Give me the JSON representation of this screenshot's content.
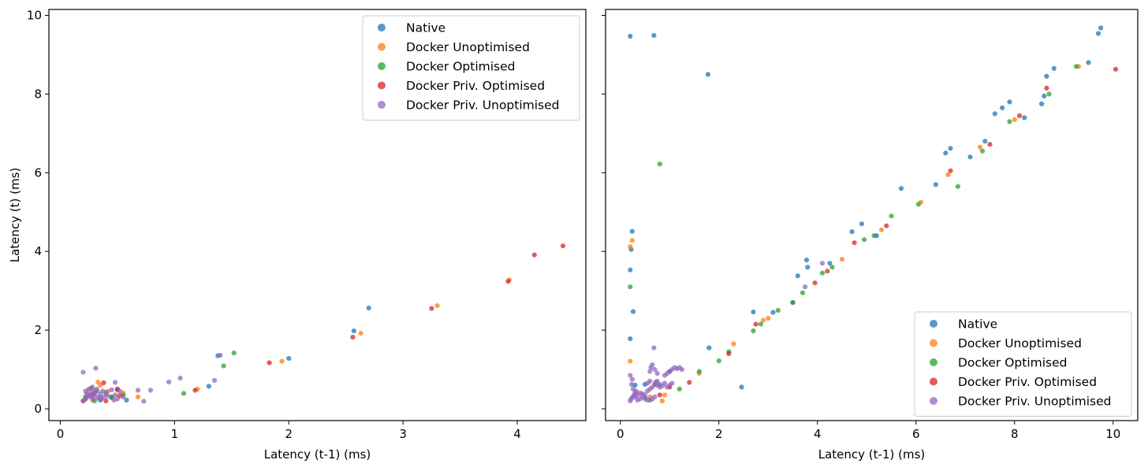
{
  "chart_data": [
    {
      "type": "scatter",
      "xlabel": "Latency (t-1) (ms)",
      "ylabel": "Latency (t) (ms)",
      "xlim": [
        -0.1,
        4.6
      ],
      "ylim": [
        -0.3,
        10.15
      ],
      "xticks": [
        0,
        1,
        2,
        3,
        4
      ],
      "yticks": [
        0,
        2,
        4,
        6,
        8,
        10
      ],
      "legend_position": "upper right",
      "series": [
        {
          "name": "Native",
          "color": "#1f77b4",
          "points": [
            [
              0.22,
              0.25
            ],
            [
              0.3,
              0.4
            ],
            [
              0.45,
              0.3
            ],
            [
              0.58,
              0.22
            ],
            [
              1.3,
              0.57
            ],
            [
              1.38,
              1.35
            ],
            [
              2.0,
              1.28
            ],
            [
              2.57,
              1.98
            ],
            [
              2.7,
              2.56
            ],
            [
              0.25,
              0.35
            ],
            [
              0.35,
              0.22
            ],
            [
              0.5,
              0.48
            ]
          ]
        },
        {
          "name": "Docker Unoptimised",
          "color": "#ff7f0e",
          "points": [
            [
              0.25,
              0.45
            ],
            [
              0.35,
              0.6
            ],
            [
              0.33,
              0.68
            ],
            [
              0.42,
              0.45
            ],
            [
              0.55,
              0.4
            ],
            [
              0.68,
              0.3
            ],
            [
              1.2,
              0.5
            ],
            [
              1.94,
              1.21
            ],
            [
              2.63,
              1.92
            ],
            [
              3.3,
              2.62
            ],
            [
              3.93,
              3.28
            ],
            [
              0.28,
              0.22
            ]
          ]
        },
        {
          "name": "Docker Optimised",
          "color": "#2ca02c",
          "points": [
            [
              0.22,
              0.3
            ],
            [
              0.27,
              0.52
            ],
            [
              0.32,
              0.45
            ],
            [
              0.45,
              0.28
            ],
            [
              0.55,
              0.35
            ],
            [
              1.08,
              0.39
            ],
            [
              1.43,
              1.09
            ],
            [
              1.52,
              1.42
            ],
            [
              0.3,
              0.2
            ],
            [
              0.4,
              0.38
            ]
          ]
        },
        {
          "name": "Docker Priv. Optimised",
          "color": "#d62728",
          "points": [
            [
              0.2,
              0.2
            ],
            [
              0.28,
              0.35
            ],
            [
              0.38,
              0.66
            ],
            [
              0.4,
              0.2
            ],
            [
              0.5,
              0.5
            ],
            [
              0.52,
              0.33
            ],
            [
              1.18,
              0.47
            ],
            [
              1.83,
              1.17
            ],
            [
              2.56,
              1.82
            ],
            [
              3.25,
              2.55
            ],
            [
              3.92,
              3.24
            ],
            [
              4.15,
              3.91
            ],
            [
              4.4,
              4.14
            ]
          ]
        },
        {
          "name": "Docker Priv. Unoptimised",
          "color": "#9467bd",
          "points": [
            [
              0.2,
              0.93
            ],
            [
              0.31,
              1.03
            ],
            [
              0.2,
              0.2
            ],
            [
              0.22,
              0.25
            ],
            [
              0.24,
              0.3
            ],
            [
              0.26,
              0.35
            ],
            [
              0.28,
              0.4
            ],
            [
              0.3,
              0.45
            ],
            [
              0.32,
              0.5
            ],
            [
              0.34,
              0.3
            ],
            [
              0.36,
              0.25
            ],
            [
              0.25,
              0.5
            ],
            [
              0.28,
              0.55
            ],
            [
              0.3,
              0.35
            ],
            [
              0.33,
              0.28
            ],
            [
              0.38,
              0.3
            ],
            [
              0.4,
              0.42
            ],
            [
              0.45,
              0.48
            ],
            [
              0.48,
              0.35
            ],
            [
              0.5,
              0.25
            ],
            [
              0.52,
              0.45
            ],
            [
              0.55,
              0.3
            ],
            [
              0.22,
              0.45
            ],
            [
              0.27,
              0.3
            ],
            [
              0.35,
              0.38
            ],
            [
              0.42,
              0.32
            ],
            [
              0.47,
              0.22
            ],
            [
              0.23,
              0.38
            ],
            [
              0.29,
              0.25
            ],
            [
              0.37,
              0.45
            ],
            [
              0.48,
              0.67
            ],
            [
              0.68,
              0.47
            ],
            [
              0.73,
              0.19
            ],
            [
              0.79,
              0.47
            ],
            [
              0.95,
              0.68
            ],
            [
              1.05,
              0.78
            ],
            [
              1.35,
              0.72
            ],
            [
              1.4,
              1.36
            ]
          ]
        }
      ]
    },
    {
      "type": "scatter",
      "xlabel": "Latency (t-1) (ms)",
      "ylabel": "",
      "xlim": [
        -0.3,
        10.5
      ],
      "ylim": [
        -0.3,
        10.15
      ],
      "xticks": [
        0,
        2,
        4,
        6,
        8,
        10
      ],
      "yticks": [
        0,
        2,
        4,
        6,
        8,
        10
      ],
      "legend_position": "lower right",
      "series": [
        {
          "name": "Native",
          "color": "#1f77b4",
          "points": [
            [
              0.2,
              9.47
            ],
            [
              0.68,
              9.49
            ],
            [
              1.78,
              8.5
            ],
            [
              0.24,
              4.51
            ],
            [
              0.22,
              4.05
            ],
            [
              0.2,
              3.53
            ],
            [
              0.26,
              2.47
            ],
            [
              0.2,
              1.78
            ],
            [
              2.46,
              0.55
            ],
            [
              0.7,
              0.62
            ],
            [
              1.8,
              1.55
            ],
            [
              3.78,
              3.78
            ],
            [
              3.8,
              3.6
            ],
            [
              3.6,
              3.38
            ],
            [
              4.25,
              3.7
            ],
            [
              4.7,
              4.5
            ],
            [
              4.9,
              4.7
            ],
            [
              5.2,
              4.4
            ],
            [
              5.7,
              5.6
            ],
            [
              6.4,
              5.7
            ],
            [
              6.6,
              6.5
            ],
            [
              6.7,
              6.62
            ],
            [
              7.1,
              6.4
            ],
            [
              7.4,
              6.8
            ],
            [
              7.6,
              7.5
            ],
            [
              7.75,
              7.65
            ],
            [
              7.9,
              7.8
            ],
            [
              8.2,
              7.4
            ],
            [
              8.55,
              7.75
            ],
            [
              8.6,
              7.95
            ],
            [
              8.65,
              8.45
            ],
            [
              8.8,
              8.65
            ],
            [
              9.5,
              8.8
            ],
            [
              9.7,
              9.54
            ],
            [
              9.75,
              9.68
            ],
            [
              2.7,
              2.46
            ],
            [
              3.1,
              2.45
            ],
            [
              3.5,
              2.7
            ],
            [
              0.5,
              0.62
            ],
            [
              1.0,
              0.95
            ],
            [
              0.3,
              0.6
            ]
          ]
        },
        {
          "name": "Docker Unoptimised",
          "color": "#ff7f0e",
          "points": [
            [
              0.24,
              4.28
            ],
            [
              0.2,
              4.12
            ],
            [
              0.2,
              1.21
            ],
            [
              0.85,
              0.2
            ],
            [
              2.3,
              1.65
            ],
            [
              2.9,
              2.25
            ],
            [
              3.0,
              2.3
            ],
            [
              4.5,
              3.8
            ],
            [
              5.3,
              4.55
            ],
            [
              6.1,
              5.25
            ],
            [
              6.65,
              5.95
            ],
            [
              7.3,
              6.65
            ],
            [
              8.0,
              7.35
            ],
            [
              9.3,
              8.7
            ],
            [
              0.6,
              0.3
            ],
            [
              0.9,
              0.35
            ],
            [
              1.6,
              0.9
            ]
          ]
        },
        {
          "name": "Docker Optimised",
          "color": "#2ca02c",
          "points": [
            [
              0.2,
              3.1
            ],
            [
              0.8,
              6.22
            ],
            [
              1.6,
              0.95
            ],
            [
              2.0,
              1.22
            ],
            [
              2.2,
              1.45
            ],
            [
              2.7,
              1.98
            ],
            [
              2.85,
              2.15
            ],
            [
              3.2,
              2.5
            ],
            [
              3.5,
              2.7
            ],
            [
              3.7,
              2.95
            ],
            [
              4.1,
              3.45
            ],
            [
              4.3,
              3.6
            ],
            [
              4.95,
              4.3
            ],
            [
              5.15,
              4.4
            ],
            [
              5.5,
              4.9
            ],
            [
              6.05,
              5.2
            ],
            [
              6.85,
              5.65
            ],
            [
              7.35,
              6.55
            ],
            [
              7.9,
              7.3
            ],
            [
              8.7,
              8.0
            ],
            [
              9.25,
              8.7
            ],
            [
              0.5,
              0.28
            ],
            [
              0.6,
              0.22
            ],
            [
              1.2,
              0.5
            ]
          ]
        },
        {
          "name": "Docker Priv. Optimised",
          "color": "#d62728",
          "points": [
            [
              1.4,
              0.67
            ],
            [
              2.2,
              1.4
            ],
            [
              2.75,
              2.15
            ],
            [
              3.95,
              3.2
            ],
            [
              4.2,
              3.5
            ],
            [
              4.75,
              4.22
            ],
            [
              5.4,
              4.65
            ],
            [
              6.7,
              6.05
            ],
            [
              7.5,
              6.72
            ],
            [
              8.1,
              7.45
            ],
            [
              8.65,
              8.15
            ],
            [
              10.05,
              8.63
            ],
            [
              0.8,
              0.35
            ],
            [
              1.0,
              0.55
            ]
          ]
        },
        {
          "name": "Docker Priv. Unoptimised",
          "color": "#9467bd",
          "points": [
            [
              0.2,
              0.2
            ],
            [
              0.22,
              0.25
            ],
            [
              0.25,
              0.3
            ],
            [
              0.28,
              0.35
            ],
            [
              0.3,
              0.4
            ],
            [
              0.32,
              0.45
            ],
            [
              0.26,
              0.5
            ],
            [
              0.23,
              0.62
            ],
            [
              0.24,
              0.75
            ],
            [
              0.2,
              0.85
            ],
            [
              0.35,
              0.22
            ],
            [
              0.4,
              0.25
            ],
            [
              0.45,
              0.3
            ],
            [
              0.5,
              0.35
            ],
            [
              0.55,
              0.45
            ],
            [
              0.6,
              0.5
            ],
            [
              0.65,
              0.55
            ],
            [
              0.7,
              0.62
            ],
            [
              0.72,
              0.68
            ],
            [
              0.75,
              0.7
            ],
            [
              0.8,
              0.62
            ],
            [
              0.85,
              0.58
            ],
            [
              0.9,
              0.65
            ],
            [
              0.95,
              0.55
            ],
            [
              1.0,
              0.6
            ],
            [
              1.05,
              0.65
            ],
            [
              0.9,
              0.85
            ],
            [
              0.95,
              0.9
            ],
            [
              1.0,
              0.95
            ],
            [
              1.05,
              1.0
            ],
            [
              1.1,
              1.05
            ],
            [
              1.15,
              1.02
            ],
            [
              1.2,
              1.05
            ],
            [
              1.25,
              1.0
            ],
            [
              0.6,
              0.95
            ],
            [
              0.62,
              1.05
            ],
            [
              0.65,
              1.12
            ],
            [
              0.7,
              1.0
            ],
            [
              0.75,
              0.9
            ],
            [
              0.68,
              1.55
            ],
            [
              0.55,
              0.65
            ],
            [
              0.6,
              0.7
            ],
            [
              0.75,
              0.6
            ],
            [
              0.8,
              0.55
            ],
            [
              0.3,
              0.3
            ],
            [
              0.35,
              0.35
            ],
            [
              0.4,
              0.4
            ],
            [
              0.45,
              0.38
            ],
            [
              0.5,
              0.25
            ],
            [
              0.55,
              0.22
            ],
            [
              0.65,
              0.25
            ],
            [
              0.7,
              0.3
            ],
            [
              4.1,
              3.7
            ],
            [
              3.75,
              3.1
            ]
          ]
        }
      ]
    }
  ]
}
